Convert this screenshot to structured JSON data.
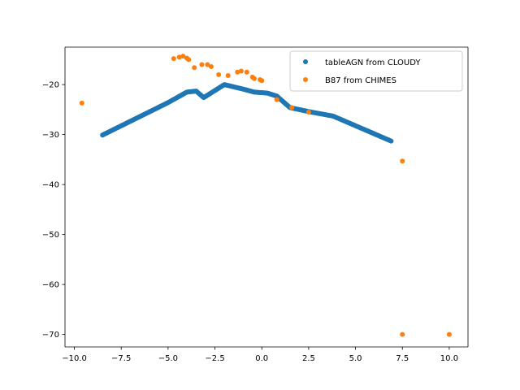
{
  "chart_data": {
    "type": "scatter",
    "title": "",
    "xlabel": "",
    "ylabel": "",
    "xlim": [
      -10.5,
      11
    ],
    "ylim": [
      -72.5,
      -12.5
    ],
    "x_ticks": [
      -10.0,
      -7.5,
      -5.0,
      -2.5,
      0.0,
      2.5,
      5.0,
      7.5,
      10.0
    ],
    "x_tick_labels": [
      "−10.0",
      "−7.5",
      "−5.0",
      "−2.5",
      "0.0",
      "2.5",
      "5.0",
      "7.5",
      "10.0"
    ],
    "y_ticks": [
      -70,
      -60,
      -50,
      -40,
      -30,
      -20
    ],
    "y_tick_labels": [
      "−70",
      "−60",
      "−50",
      "−40",
      "−30",
      "−20"
    ],
    "grid": false,
    "legend_position": "top-right",
    "series": [
      {
        "name": "tableAGN from CLOUDY",
        "color": "#1f77b4",
        "marker": "circle",
        "segments": [
          [
            -8.5,
            -30.1
          ],
          [
            -5.0,
            -23.6
          ],
          [
            -4.0,
            -21.5
          ],
          [
            -3.5,
            -21.3
          ],
          [
            -3.1,
            -22.6
          ],
          [
            -2.0,
            -20.0
          ],
          [
            -1.0,
            -20.9
          ],
          [
            -0.4,
            -21.5
          ],
          [
            0.3,
            -21.7
          ],
          [
            0.8,
            -22.3
          ],
          [
            1.5,
            -24.6
          ],
          [
            2.5,
            -25.4
          ],
          [
            3.8,
            -26.3
          ],
          [
            6.9,
            -31.3
          ]
        ],
        "step": 0.04
      },
      {
        "name": "B87 from CHIMES",
        "color": "#ff7f0e",
        "marker": "circle",
        "x": [
          -9.6,
          -4.7,
          -4.4,
          -4.2,
          -4.0,
          -3.9,
          -3.6,
          -3.2,
          -2.9,
          -2.7,
          -2.3,
          -1.8,
          -1.3,
          -1.1,
          -0.8,
          -0.5,
          -0.4,
          -0.1,
          0.0,
          0.8,
          1.6,
          2.5,
          7.5,
          7.5,
          10.0
        ],
        "y": [
          -23.7,
          -14.8,
          -14.5,
          -14.3,
          -14.7,
          -15.0,
          -16.6,
          -16.0,
          -16.0,
          -16.4,
          -18.0,
          -18.2,
          -17.5,
          -17.3,
          -17.5,
          -18.5,
          -18.8,
          -19.0,
          -19.2,
          -23.0,
          -24.6,
          -25.5,
          -35.3,
          -70.0,
          -70.0
        ]
      }
    ]
  }
}
